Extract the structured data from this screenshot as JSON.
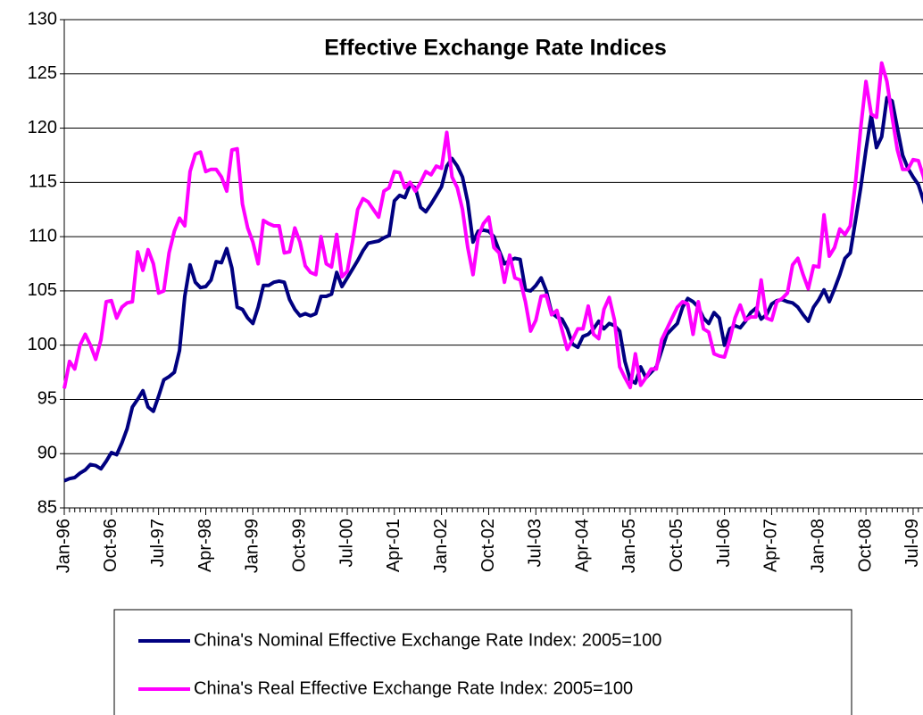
{
  "chart_data": {
    "type": "line",
    "title": "Effective Exchange Rate Indices",
    "categories": [
      "Jan-96",
      null,
      null,
      null,
      null,
      null,
      null,
      null,
      null,
      "Oct-96",
      null,
      null,
      null,
      null,
      null,
      null,
      null,
      null,
      "Jul-97",
      null,
      null,
      null,
      null,
      null,
      null,
      null,
      null,
      "Apr-98",
      null,
      null,
      null,
      null,
      null,
      null,
      null,
      null,
      "Jan-99",
      null,
      null,
      null,
      null,
      null,
      null,
      null,
      null,
      "Oct-99",
      null,
      null,
      null,
      null,
      null,
      null,
      null,
      null,
      "Jul-00",
      null,
      null,
      null,
      null,
      null,
      null,
      null,
      null,
      "Apr-01",
      null,
      null,
      null,
      null,
      null,
      null,
      null,
      null,
      "Jan-02",
      null,
      null,
      null,
      null,
      null,
      null,
      null,
      null,
      "Oct-02",
      null,
      null,
      null,
      null,
      null,
      null,
      null,
      null,
      "Jul-03",
      null,
      null,
      null,
      null,
      null,
      null,
      null,
      null,
      "Apr-04",
      null,
      null,
      null,
      null,
      null,
      null,
      null,
      null,
      "Jan-05",
      null,
      null,
      null,
      null,
      null,
      null,
      null,
      null,
      "Oct-05",
      null,
      null,
      null,
      null,
      null,
      null,
      null,
      null,
      "Jul-06",
      null,
      null,
      null,
      null,
      null,
      null,
      null,
      null,
      "Apr-07",
      null,
      null,
      null,
      null,
      null,
      null,
      null,
      null,
      "Jan-08",
      null,
      null,
      null,
      null,
      null,
      null,
      null,
      null,
      "Oct-08",
      null,
      null,
      null,
      null,
      null,
      null,
      null,
      null,
      "Jul-09",
      null,
      null,
      null
    ],
    "series": [
      {
        "name": "China's Nominal Effective Exchange Rate Index: 2005=100",
        "color": "#000080",
        "values": [
          87.5,
          87.7,
          87.8,
          88.2,
          88.5,
          89,
          88.9,
          88.6,
          89.3,
          90.1,
          89.9,
          91,
          92.3,
          94.3,
          95,
          95.8,
          94.3,
          93.9,
          95.3,
          96.8,
          97.1,
          97.5,
          99.5,
          104.5,
          107.4,
          105.8,
          105.3,
          105.4,
          106,
          107.7,
          107.6,
          108.9,
          107.1,
          103.5,
          103.3,
          102.5,
          102,
          103.5,
          105.5,
          105.5,
          105.8,
          105.9,
          105.8,
          104.2,
          103.3,
          102.7,
          102.9,
          102.7,
          102.9,
          104.5,
          104.5,
          104.7,
          106.7,
          105.4,
          106.2,
          107,
          107.8,
          108.7,
          109.4,
          109.5,
          109.6,
          109.9,
          110.1,
          113.3,
          113.8,
          113.6,
          114.8,
          114.5,
          112.7,
          112.3,
          113,
          113.8,
          114.6,
          116.5,
          117.2,
          116.5,
          115.5,
          113.2,
          109.5,
          110.5,
          110.6,
          110.5,
          110,
          108.7,
          107.5,
          107.8,
          108,
          107.9,
          105.1,
          105,
          105.5,
          106.2,
          105,
          103,
          102.6,
          102.4,
          101.5,
          100.1,
          99.8,
          100.8,
          101,
          101.5,
          102.2,
          101.5,
          102,
          101.8,
          101.3,
          98.5,
          96.8,
          96.5,
          98,
          97,
          97.5,
          98,
          99.5,
          101,
          101.5,
          102,
          103.5,
          104.3,
          104,
          103.5,
          102.5,
          102,
          103,
          102.5,
          100,
          101.5,
          101.8,
          101.6,
          102.2,
          103,
          103.4,
          102.4,
          102.8,
          103.8,
          104.1,
          104.2,
          104,
          103.9,
          103.5,
          102.8,
          102.2,
          103.5,
          104.2,
          105.1,
          104,
          105.2,
          106.5,
          108,
          108.5,
          111.5,
          114.5,
          118,
          121.2,
          118.2,
          119.2,
          122.8,
          122.5,
          120,
          117.5,
          116.3,
          115.5,
          114.8,
          113.3,
          111.8
        ]
      },
      {
        "name": "China's Real Effective Exchange Rate Index: 2005=100",
        "color": "#ff00ff",
        "values": [
          96,
          98.5,
          97.8,
          100,
          101,
          100,
          98.7,
          100.5,
          104,
          104.1,
          102.5,
          103.5,
          103.9,
          104,
          108.6,
          106.9,
          108.8,
          107.5,
          104.8,
          105,
          108.5,
          110.5,
          111.7,
          111,
          116,
          117.6,
          117.8,
          116,
          116.2,
          116.2,
          115.5,
          114.2,
          118,
          118.1,
          113,
          110.8,
          109.5,
          107.5,
          111.5,
          111.2,
          111,
          111,
          108.5,
          108.6,
          110.8,
          109.5,
          107.3,
          106.7,
          106.5,
          110,
          107.5,
          107.2,
          110.2,
          106.3,
          106.8,
          109.5,
          112.5,
          113.5,
          113.2,
          112.5,
          111.8,
          114.2,
          114.5,
          116,
          115.9,
          114.5,
          115,
          114.2,
          115,
          116,
          115.7,
          116.5,
          116.3,
          119.6,
          115.5,
          114.5,
          112.5,
          109,
          106.5,
          110,
          111.2,
          111.8,
          109,
          108.5,
          105.8,
          108.3,
          106.2,
          106,
          104,
          101.3,
          102.3,
          104.5,
          104.6,
          102.8,
          103.2,
          101.4,
          99.6,
          100.5,
          101.5,
          101.5,
          103.6,
          101,
          100.6,
          103.3,
          104.4,
          102.3,
          98,
          97,
          96.1,
          99.2,
          96.3,
          97,
          97.8,
          97.8,
          100.5,
          101.5,
          102.5,
          103.5,
          104,
          103.8,
          101,
          104,
          101.5,
          101.2,
          99.2,
          99,
          98.9,
          100.5,
          102.5,
          103.7,
          102.3,
          102.6,
          102.6,
          106,
          102.5,
          102.3,
          104,
          104.3,
          104.8,
          107.4,
          108,
          106.5,
          105.2,
          107.3,
          107.2,
          112,
          108.2,
          109,
          110.7,
          110.2,
          111,
          115,
          120,
          124.3,
          121.3,
          121,
          126,
          124.3,
          121,
          118,
          116.2,
          116.2,
          117.1,
          117,
          115.5,
          113.2
        ]
      }
    ],
    "ylim": [
      85,
      130
    ],
    "yticks": [
      85,
      90,
      95,
      100,
      105,
      110,
      115,
      120,
      125,
      130
    ],
    "grid": true
  }
}
